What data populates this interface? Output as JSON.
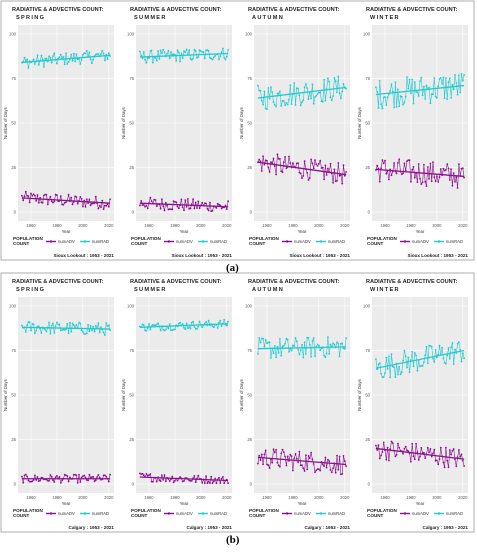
{
  "figure": {
    "rows": [
      {
        "caption": "(a)",
        "caption_short": "a",
        "footer": "Sioux Lookout : 1953 - 2021"
      },
      {
        "caption": "(b)",
        "caption_short": "b",
        "footer": "Calgary : 1953 - 2021"
      }
    ],
    "shared": {
      "title_prefix": "RADIATIVE & ADVECTIVE COUNT:",
      "seasons": [
        "SPRING",
        "SUMMER",
        "AUTUMN",
        "WINTER"
      ],
      "ylabel": "Number of Days",
      "xlabel": "Year",
      "legend_title_line1": "POPULATION",
      "legend_title_line2": "COUNT",
      "legend_items": [
        "numADV",
        "numRAD"
      ],
      "colors": {
        "numADV": "#8b0f8e",
        "numRAD": "#22c9cf",
        "panel_bg": "#ebebeb",
        "grid": "#ffffff"
      }
    }
  },
  "chart_data": [
    {
      "type": "line",
      "panel": "a-spring",
      "title": "RADIATIVE & ADVECTIVE COUNT: SPRING",
      "xlabel": "Year",
      "ylabel": "Number of Days",
      "xlim": [
        1953,
        2021
      ],
      "ylim": [
        0,
        100
      ],
      "x_ticks": [
        1960,
        1980,
        2000,
        2020
      ],
      "y_ticks": [
        0,
        25,
        50,
        75,
        100
      ],
      "y_tick_labels": [
        "0",
        "25",
        "50",
        "75",
        "100"
      ],
      "series": [
        {
          "name": "numADV",
          "mean": 6,
          "trend": [
            8,
            5
          ],
          "spread": 3
        },
        {
          "name": "numRAD",
          "mean": 86,
          "trend": [
            84,
            88
          ],
          "spread": 3
        }
      ]
    },
    {
      "type": "line",
      "panel": "a-summer",
      "title": "RADIATIVE & ADVECTIVE COUNT: SUMMER",
      "xlabel": "Year",
      "ylabel": "Number of Days",
      "xlim": [
        1953,
        2021
      ],
      "ylim": [
        0,
        100
      ],
      "x_ticks": [
        1960,
        1980,
        2000,
        2020
      ],
      "y_ticks": [
        0,
        25,
        50,
        75,
        100
      ],
      "y_tick_labels": [
        "0",
        "25",
        "50",
        "75",
        "100"
      ],
      "series": [
        {
          "name": "numADV",
          "mean": 4,
          "trend": [
            5,
            3
          ],
          "spread": 3
        },
        {
          "name": "numRAD",
          "mean": 88,
          "trend": [
            87,
            89
          ],
          "spread": 3
        }
      ]
    },
    {
      "type": "line",
      "panel": "a-autumn",
      "title": "RADIATIVE & ADVECTIVE COUNT: AUTUMN",
      "xlabel": "Year",
      "ylabel": "Number of Days",
      "xlim": [
        1953,
        2021
      ],
      "ylim": [
        0,
        100
      ],
      "x_ticks": [
        1960,
        1980,
        2000,
        2020
      ],
      "y_ticks": [
        0,
        25,
        50,
        75,
        100
      ],
      "y_tick_labels": [
        "0",
        "25",
        "50",
        "75",
        "100"
      ],
      "series": [
        {
          "name": "numADV",
          "mean": 24,
          "trend": [
            28,
            21
          ],
          "spread": 5
        },
        {
          "name": "numRAD",
          "mean": 67,
          "trend": [
            64,
            70
          ],
          "spread": 6
        }
      ]
    },
    {
      "type": "line",
      "panel": "a-winter",
      "title": "RADIATIVE & ADVECTIVE COUNT: WINTER",
      "xlabel": "Year",
      "ylabel": "Number of Days",
      "xlim": [
        1953,
        2021
      ],
      "ylim": [
        0,
        100
      ],
      "x_ticks": [
        1960,
        1980,
        2000,
        2020
      ],
      "y_ticks": [
        0,
        25,
        50,
        75,
        100
      ],
      "y_tick_labels": [
        "0",
        "25",
        "50",
        "75",
        "100"
      ],
      "series": [
        {
          "name": "numADV",
          "mean": 22,
          "trend": [
            24,
            20
          ],
          "spread": 6
        },
        {
          "name": "numRAD",
          "mean": 68,
          "trend": [
            66,
            71
          ],
          "spread": 7
        }
      ]
    },
    {
      "type": "line",
      "panel": "b-spring",
      "title": "RADIATIVE & ADVECTIVE COUNT: SPRING",
      "xlabel": "Year",
      "ylabel": "Number of Days",
      "xlim": [
        1953,
        2021
      ],
      "ylim": [
        0,
        100
      ],
      "x_ticks": [
        1960,
        1980,
        2000,
        2020
      ],
      "y_ticks": [
        0,
        25,
        50,
        75,
        100
      ],
      "y_tick_labels": [
        "0",
        "25",
        "50",
        "75",
        "100"
      ],
      "series": [
        {
          "name": "numADV",
          "mean": 3,
          "trend": [
            3,
            3
          ],
          "spread": 2
        },
        {
          "name": "numRAD",
          "mean": 88,
          "trend": [
            88,
            87
          ],
          "spread": 3
        }
      ]
    },
    {
      "type": "line",
      "panel": "b-summer",
      "title": "RADIATIVE & ADVECTIVE COUNT: SUMMER",
      "xlabel": "Year",
      "ylabel": "Number of Days",
      "xlim": [
        1953,
        2021
      ],
      "ylim": [
        0,
        100
      ],
      "x_ticks": [
        1960,
        1980,
        2000,
        2020
      ],
      "y_ticks": [
        0,
        25,
        50,
        75,
        100
      ],
      "y_tick_labels": [
        "0",
        "25",
        "50",
        "75",
        "100"
      ],
      "series": [
        {
          "name": "numADV",
          "mean": 3,
          "trend": [
            4,
            2
          ],
          "spread": 2
        },
        {
          "name": "numRAD",
          "mean": 89,
          "trend": [
            88,
            90
          ],
          "spread": 2
        }
      ]
    },
    {
      "type": "line",
      "panel": "b-autumn",
      "title": "RADIATIVE & ADVECTIVE COUNT: AUTUMN",
      "xlabel": "Year",
      "ylabel": "Number of Days",
      "xlim": [
        1953,
        2021
      ],
      "ylim": [
        0,
        100
      ],
      "x_ticks": [
        1960,
        1980,
        2000,
        2020
      ],
      "y_ticks": [
        0,
        25,
        50,
        75,
        100
      ],
      "y_tick_labels": [
        "0",
        "25",
        "50",
        "75",
        "100"
      ],
      "series": [
        {
          "name": "numADV",
          "mean": 13,
          "trend": [
            15,
            11
          ],
          "spread": 5
        },
        {
          "name": "numRAD",
          "mean": 76,
          "trend": [
            76,
            77
          ],
          "spread": 5
        }
      ]
    },
    {
      "type": "line",
      "panel": "b-winter",
      "title": "RADIATIVE & ADVECTIVE COUNT: WINTER",
      "xlabel": "Year",
      "ylabel": "Number of Days",
      "xlim": [
        1953,
        2021
      ],
      "ylim": [
        0,
        100
      ],
      "x_ticks": [
        1960,
        1980,
        2000,
        2020
      ],
      "y_ticks": [
        0,
        25,
        50,
        75,
        100
      ],
      "y_tick_labels": [
        "0",
        "25",
        "50",
        "75",
        "100"
      ],
      "series": [
        {
          "name": "numADV",
          "mean": 17,
          "trend": [
            20,
            14
          ],
          "spread": 5
        },
        {
          "name": "numRAD",
          "mean": 71,
          "trend": [
            65,
            75
          ],
          "spread": 6
        }
      ]
    }
  ]
}
